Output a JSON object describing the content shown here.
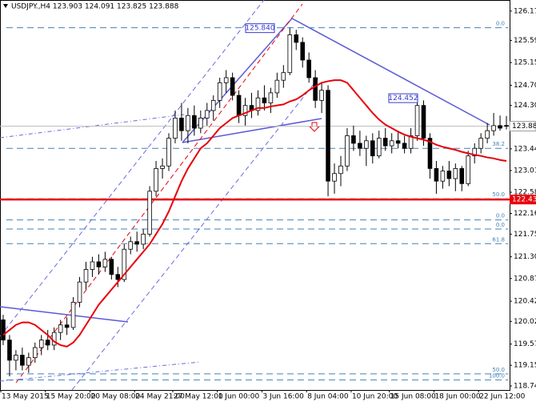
{
  "chart_data": {
    "type": "candlestick",
    "title": "USDJPY.,H4 123.903 124.091 123.825 123.888",
    "categories": [
      "13 May 2015",
      null,
      null,
      null,
      null,
      null,
      null,
      "15 May 20:00",
      null,
      null,
      null,
      null,
      null,
      null,
      "20 May 08:00",
      null,
      null,
      null,
      null,
      null,
      null,
      "24 May 21:00",
      null,
      null,
      null,
      null,
      null,
      "27 May 12:00",
      null,
      null,
      null,
      null,
      null,
      null,
      "1 Jun 00:00",
      null,
      null,
      null,
      null,
      null,
      null,
      "3 Jun 16:00",
      null,
      null,
      null,
      null,
      null,
      null,
      "8 Jun 04:00",
      null,
      null,
      null,
      null,
      null,
      null,
      "10 Jun 20:00",
      null,
      null,
      null,
      null,
      null,
      "15 Jun 08:00",
      null,
      null,
      null,
      null,
      null,
      null,
      "18 Jun 00:00",
      null,
      null,
      null,
      null,
      null,
      null,
      "22 Jun 12:00",
      null,
      null,
      null,
      null
    ],
    "open": [
      120.05,
      119.65,
      119.25,
      119.35,
      119.15,
      119.3,
      119.5,
      119.65,
      119.55,
      119.8,
      119.95,
      119.9,
      120.4,
      120.8,
      121.05,
      121.2,
      121.1,
      121.25,
      120.95,
      120.85,
      121.45,
      121.6,
      121.55,
      121.75,
      122.6,
      123.05,
      123.1,
      123.65,
      124.05,
      123.8,
      124.1,
      123.85,
      124.05,
      124.2,
      124.4,
      124.75,
      124.85,
      124.5,
      124.1,
      124.3,
      124.2,
      124.45,
      124.35,
      124.55,
      124.8,
      124.95,
      125.7,
      125.55,
      125.2,
      124.85,
      124.4,
      124.6,
      122.8,
      122.95,
      123.1,
      123.7,
      123.55,
      123.45,
      123.6,
      123.3,
      123.65,
      123.5,
      123.6,
      123.55,
      123.45,
      123.7,
      124.3,
      123.65,
      123.05,
      122.8,
      123.0,
      122.85,
      123.05,
      122.75,
      123.3,
      123.45,
      123.65,
      123.8,
      123.9,
      123.903
    ],
    "high": [
      120.15,
      119.75,
      119.45,
      119.5,
      119.4,
      119.6,
      119.75,
      119.85,
      119.9,
      120.05,
      120.1,
      120.5,
      120.9,
      121.2,
      121.3,
      121.35,
      121.4,
      121.3,
      121.1,
      121.55,
      121.7,
      121.8,
      121.85,
      122.7,
      123.2,
      123.25,
      123.75,
      124.2,
      124.35,
      124.25,
      124.3,
      124.2,
      124.35,
      124.5,
      124.85,
      125.0,
      124.95,
      124.6,
      124.45,
      124.55,
      124.6,
      124.7,
      124.65,
      124.95,
      125.1,
      125.84,
      125.8,
      125.65,
      125.35,
      125.0,
      124.75,
      124.7,
      123.15,
      123.3,
      123.85,
      123.9,
      123.8,
      123.7,
      123.75,
      123.8,
      123.85,
      123.75,
      123.8,
      123.7,
      123.85,
      124.45,
      124.4,
      123.75,
      123.2,
      123.1,
      123.2,
      123.15,
      123.1,
      123.4,
      123.55,
      123.75,
      123.95,
      124.15,
      124.1,
      124.091
    ],
    "low": [
      119.55,
      118.93,
      119.05,
      119.05,
      119.0,
      119.2,
      119.35,
      119.45,
      119.45,
      119.65,
      119.75,
      119.85,
      120.3,
      120.65,
      120.9,
      120.95,
      121.0,
      120.85,
      120.7,
      120.8,
      121.35,
      121.4,
      121.45,
      121.7,
      122.5,
      122.85,
      123.0,
      123.55,
      123.6,
      123.55,
      123.7,
      123.75,
      123.9,
      124.0,
      124.25,
      124.55,
      124.4,
      123.95,
      123.9,
      124.05,
      124.1,
      124.2,
      124.15,
      124.45,
      124.65,
      124.9,
      125.4,
      125.05,
      124.75,
      124.25,
      124.15,
      122.5,
      122.55,
      122.7,
      123.0,
      123.4,
      123.3,
      123.1,
      123.15,
      123.25,
      123.4,
      123.35,
      123.45,
      123.35,
      123.35,
      123.6,
      123.5,
      122.85,
      122.55,
      122.65,
      122.7,
      122.6,
      122.6,
      122.7,
      123.15,
      123.35,
      123.55,
      123.7,
      123.8,
      123.825
    ],
    "close": [
      119.65,
      119.25,
      119.35,
      119.15,
      119.3,
      119.5,
      119.65,
      119.55,
      119.8,
      119.95,
      119.9,
      120.4,
      120.8,
      121.05,
      121.2,
      121.1,
      121.25,
      120.95,
      120.85,
      121.45,
      121.6,
      121.55,
      121.75,
      122.6,
      123.05,
      123.1,
      123.65,
      124.05,
      123.8,
      124.1,
      123.85,
      124.05,
      124.2,
      124.4,
      124.75,
      124.85,
      124.5,
      124.1,
      124.3,
      124.2,
      124.45,
      124.35,
      124.55,
      124.8,
      124.95,
      125.7,
      125.55,
      125.2,
      124.85,
      124.4,
      124.6,
      122.8,
      122.95,
      123.1,
      123.7,
      123.55,
      123.45,
      123.6,
      123.3,
      123.65,
      123.5,
      123.6,
      123.55,
      123.45,
      123.7,
      124.3,
      123.65,
      123.05,
      122.8,
      123.0,
      122.85,
      123.05,
      122.75,
      123.3,
      123.45,
      123.65,
      123.8,
      123.9,
      123.85,
      123.888
    ],
    "moving_average": {
      "color": "#e8000b",
      "values": [
        119.75,
        119.85,
        119.95,
        120.0,
        120.0,
        119.95,
        119.85,
        119.75,
        119.62,
        119.55,
        119.52,
        119.6,
        119.75,
        119.95,
        120.15,
        120.35,
        120.5,
        120.65,
        120.8,
        120.95,
        121.1,
        121.25,
        121.4,
        121.55,
        121.75,
        121.95,
        122.2,
        122.5,
        122.8,
        123.05,
        123.25,
        123.45,
        123.55,
        123.7,
        123.85,
        123.95,
        124.05,
        124.1,
        124.15,
        124.2,
        124.25,
        124.25,
        124.28,
        124.3,
        124.32,
        124.38,
        124.42,
        124.5,
        124.6,
        124.68,
        124.75,
        124.78,
        124.8,
        124.8,
        124.75,
        124.6,
        124.45,
        124.3,
        124.15,
        124.02,
        123.92,
        123.85,
        123.78,
        123.72,
        123.68,
        123.65,
        123.62,
        123.58,
        123.52,
        123.48,
        123.45,
        123.42,
        123.38,
        123.35,
        123.32,
        123.3,
        123.27,
        123.25,
        123.22,
        123.2
      ]
    },
    "ylim": [
      118.66,
      126.39
    ],
    "yticks": [
      {
        "value": 126.17,
        "label": "126.170"
      },
      {
        "value": 125.59,
        "label": "125.590"
      },
      {
        "value": 125.15,
        "label": "125.150"
      },
      {
        "value": 124.7,
        "label": "124.700"
      },
      {
        "value": 124.3,
        "label": "124.300"
      },
      {
        "value": 123.44,
        "label": "123.440"
      },
      {
        "value": 123.01,
        "label": "123.010"
      },
      {
        "value": 122.58,
        "label": "122.580"
      },
      {
        "value": 122.16,
        "label": "122.160"
      },
      {
        "value": 121.75,
        "label": "121.750"
      },
      {
        "value": 121.3,
        "label": "121.300"
      },
      {
        "value": 120.87,
        "label": "120.870"
      },
      {
        "value": 120.42,
        "label": "120.420"
      },
      {
        "value": 120.02,
        "label": "120.020"
      },
      {
        "value": 119.57,
        "label": "119.570"
      },
      {
        "value": 119.15,
        "label": "119.150"
      },
      {
        "value": 118.74,
        "label": "118.740"
      }
    ],
    "current_price": 123.888,
    "support_line": {
      "value": 122.435,
      "color": "#e8000b"
    },
    "levels": [
      {
        "value": 125.84,
        "label": "0.0"
      },
      {
        "value": 123.45,
        "label": "38.2"
      },
      {
        "value": 122.45,
        "label": "50.0"
      },
      {
        "value": 122.03,
        "label": "0.0"
      },
      {
        "value": 121.85,
        "label": "0.0"
      },
      {
        "value": 121.56,
        "label": "61.8"
      },
      {
        "value": 118.98,
        "label": "50.0"
      },
      {
        "value": 118.86,
        "label": "100.0"
      }
    ],
    "annotations": [
      {
        "value": 125.84,
        "label": "125.840"
      },
      {
        "value": 124.452,
        "label": "124.452"
      }
    ],
    "bull_color": "#ffffff",
    "bear_color": "#000000"
  }
}
